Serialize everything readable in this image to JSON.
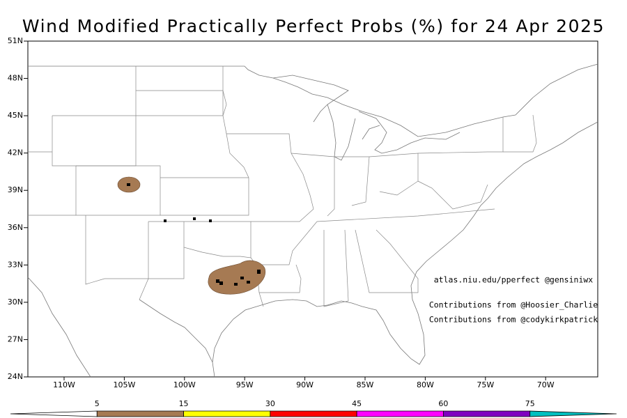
{
  "chart_data": {
    "type": "map",
    "title": "Wind Modified Practically Perfect Probs (%) for 24 Apr 2025",
    "ylim": [
      24,
      51
    ],
    "yticks": [
      {
        "value": 24,
        "label": "24N"
      },
      {
        "value": 27,
        "label": "27N"
      },
      {
        "value": 30,
        "label": "30N"
      },
      {
        "value": 33,
        "label": "33N"
      },
      {
        "value": 36,
        "label": "36N"
      },
      {
        "value": 39,
        "label": "39N"
      },
      {
        "value": 42,
        "label": "42N"
      },
      {
        "value": 45,
        "label": "45N"
      },
      {
        "value": 48,
        "label": "48N"
      },
      {
        "value": 51,
        "label": "51N"
      }
    ],
    "xticks": [
      {
        "value": -110,
        "label": "110W"
      },
      {
        "value": -105,
        "label": "105W"
      },
      {
        "value": -100,
        "label": "100W"
      },
      {
        "value": -95,
        "label": "95W"
      },
      {
        "value": -90,
        "label": "90W"
      },
      {
        "value": -85,
        "label": "85W"
      },
      {
        "value": -80,
        "label": "80W"
      },
      {
        "value": -75,
        "label": "75W"
      },
      {
        "value": -70,
        "label": "70W"
      }
    ],
    "credits": [
      "atlas.niu.edu/pperfect @gensiniwx",
      "Contributions from @Hoosier_Charlie",
      "Contributions from @codykirkpatrick"
    ],
    "colorbar": {
      "levels": [
        5,
        15,
        30,
        45,
        60,
        75
      ],
      "colors": [
        "#a67a53",
        "#ffff00",
        "#ff0000",
        "#ff00ff",
        "#8000c0",
        "#00c0c0"
      ]
    }
  }
}
